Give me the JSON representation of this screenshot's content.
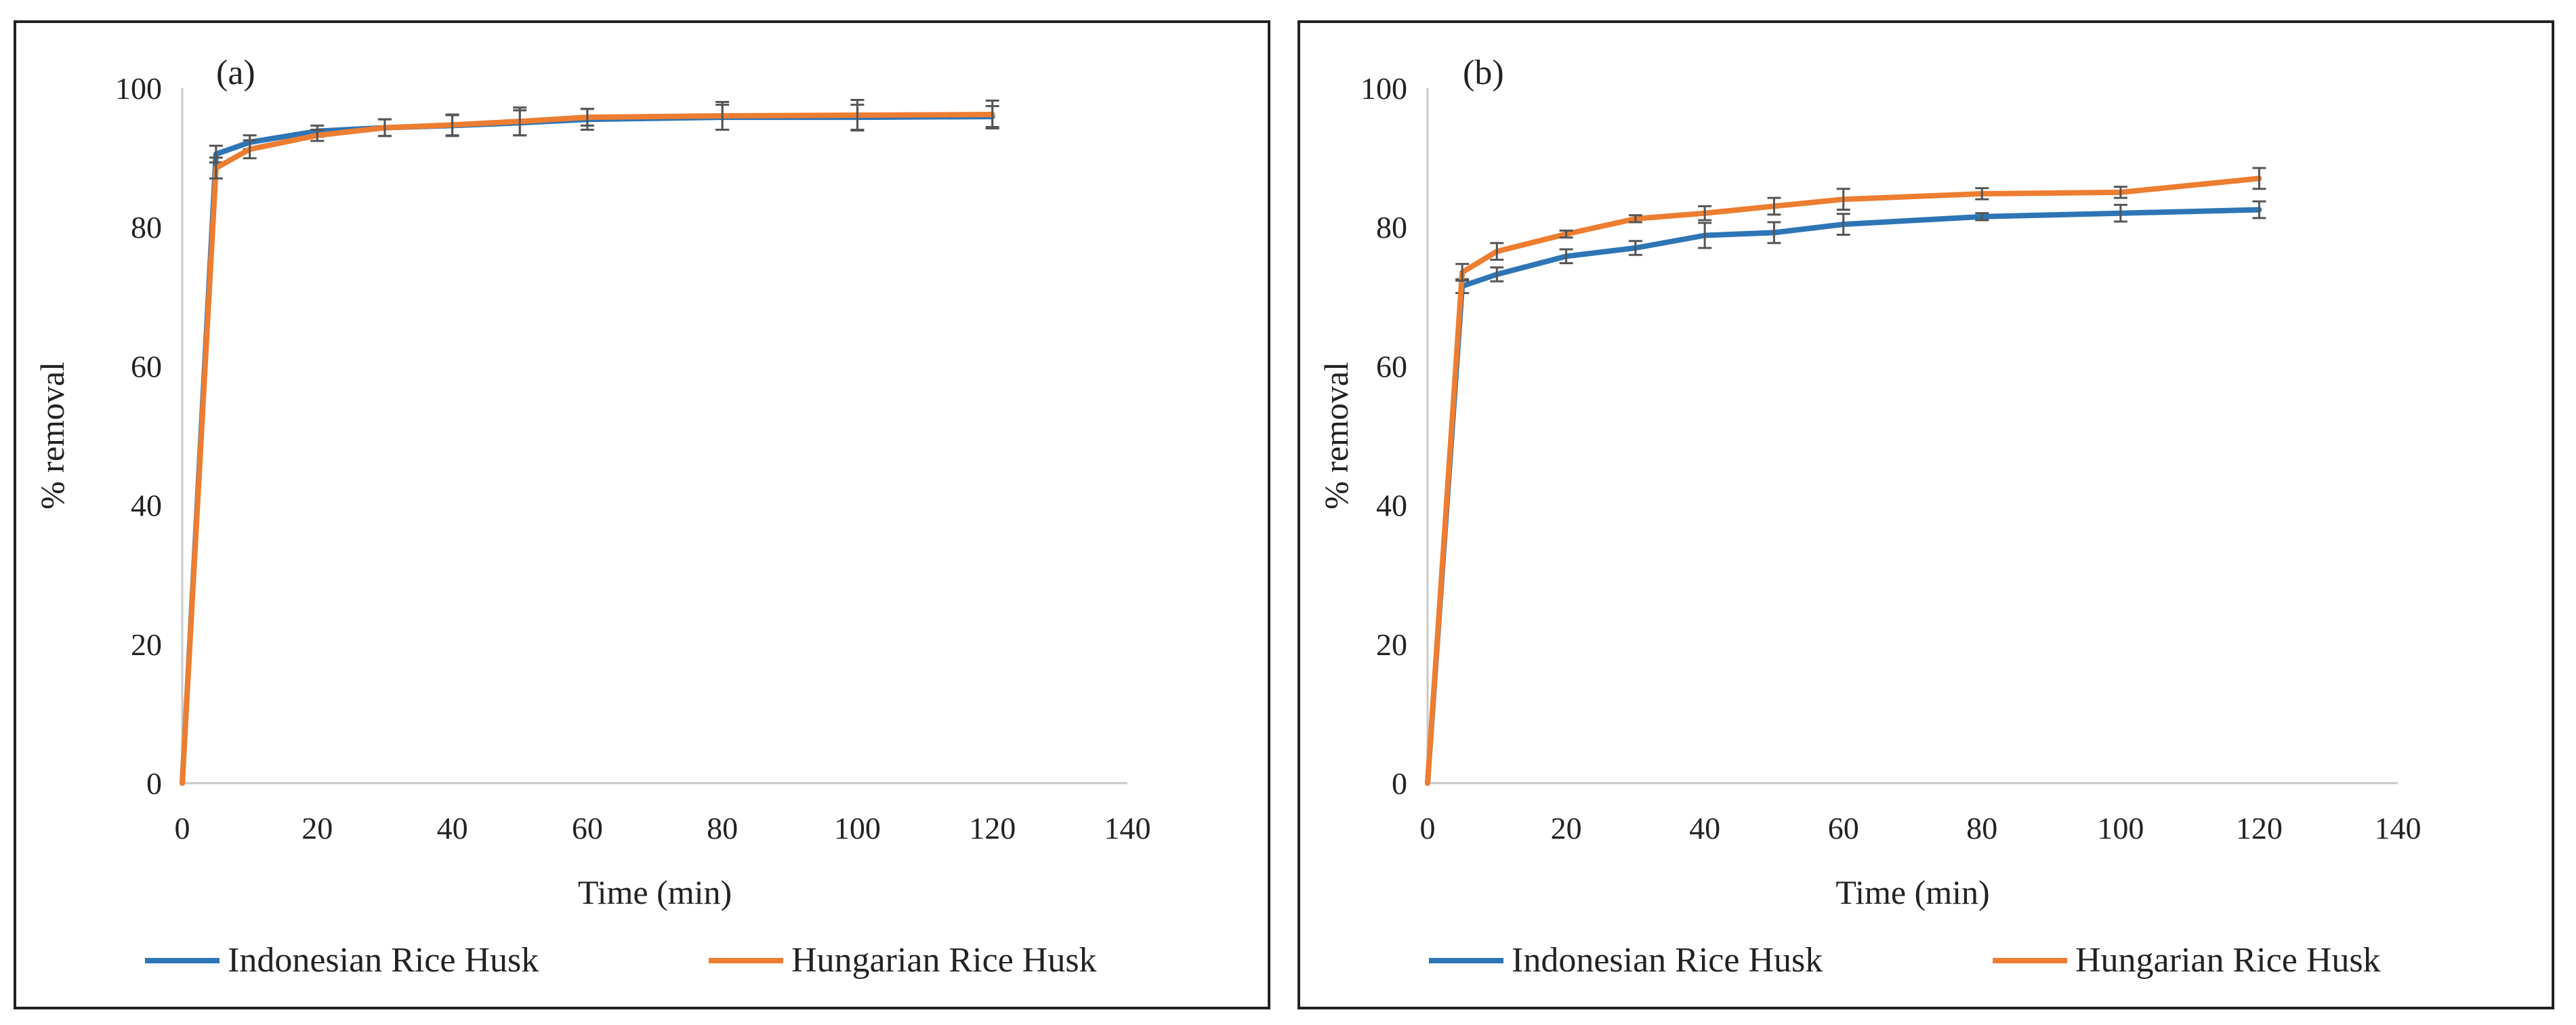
{
  "chart_data": [
    {
      "type": "line",
      "panel_label": "(a)",
      "xlabel": "Time (min)",
      "ylabel": "% removal",
      "xlim": [
        0,
        140
      ],
      "ylim": [
        0,
        100
      ],
      "xticks": [
        0,
        20,
        40,
        60,
        80,
        100,
        120,
        140
      ],
      "yticks": [
        0,
        20,
        40,
        60,
        80,
        100
      ],
      "legend_position": "bottom",
      "series": [
        {
          "name": "Indonesian Rice Husk",
          "color": "#2E75B6",
          "x": [
            0,
            5,
            10,
            20,
            30,
            40,
            50,
            60,
            80,
            100,
            120
          ],
          "y": [
            0,
            90.5,
            92.2,
            93.8,
            94.3,
            94.6,
            95.0,
            95.5,
            95.8,
            95.8,
            95.9
          ],
          "err": [
            0,
            1.2,
            1.0,
            0.8,
            1.2,
            1.5,
            1.8,
            1.5,
            1.8,
            1.8,
            1.5
          ]
        },
        {
          "name": "Hungarian Rice Husk",
          "color": "#ED7D31",
          "x": [
            0,
            5,
            10,
            20,
            30,
            40,
            50,
            60,
            80,
            100,
            120
          ],
          "y": [
            0,
            88.5,
            91.2,
            93.2,
            94.3,
            94.7,
            95.2,
            95.8,
            96.0,
            96.1,
            96.2
          ],
          "err": [
            0,
            1.5,
            1.3,
            0.8,
            1.2,
            1.5,
            2.0,
            1.2,
            2.0,
            2.2,
            2.0
          ]
        }
      ]
    },
    {
      "type": "line",
      "panel_label": "(b)",
      "xlabel": "Time (min)",
      "ylabel": "% removal",
      "xlim": [
        0,
        140
      ],
      "ylim": [
        0,
        100
      ],
      "xticks": [
        0,
        20,
        40,
        60,
        80,
        100,
        120,
        140
      ],
      "yticks": [
        0,
        20,
        40,
        60,
        80,
        100
      ],
      "legend_position": "bottom",
      "series": [
        {
          "name": "Indonesian Rice Husk",
          "color": "#2E75B6",
          "x": [
            0,
            5,
            10,
            20,
            30,
            40,
            50,
            60,
            80,
            100,
            120
          ],
          "y": [
            0,
            71.5,
            73.2,
            75.8,
            77.0,
            78.8,
            79.2,
            80.4,
            81.5,
            82.0,
            82.5
          ],
          "err": [
            0,
            1.0,
            1.0,
            1.0,
            1.0,
            1.8,
            1.5,
            1.5,
            0.5,
            1.2,
            1.2
          ]
        },
        {
          "name": "Hungarian Rice Husk",
          "color": "#ED7D31",
          "x": [
            0,
            5,
            10,
            20,
            30,
            40,
            50,
            60,
            80,
            100,
            120
          ],
          "y": [
            0,
            73.5,
            76.5,
            79.0,
            81.2,
            82.0,
            83.0,
            84.0,
            84.8,
            85.0,
            87.0
          ],
          "err": [
            0,
            1.2,
            1.2,
            0.5,
            0.5,
            1.0,
            1.2,
            1.5,
            0.8,
            0.8,
            1.5
          ]
        }
      ]
    }
  ]
}
